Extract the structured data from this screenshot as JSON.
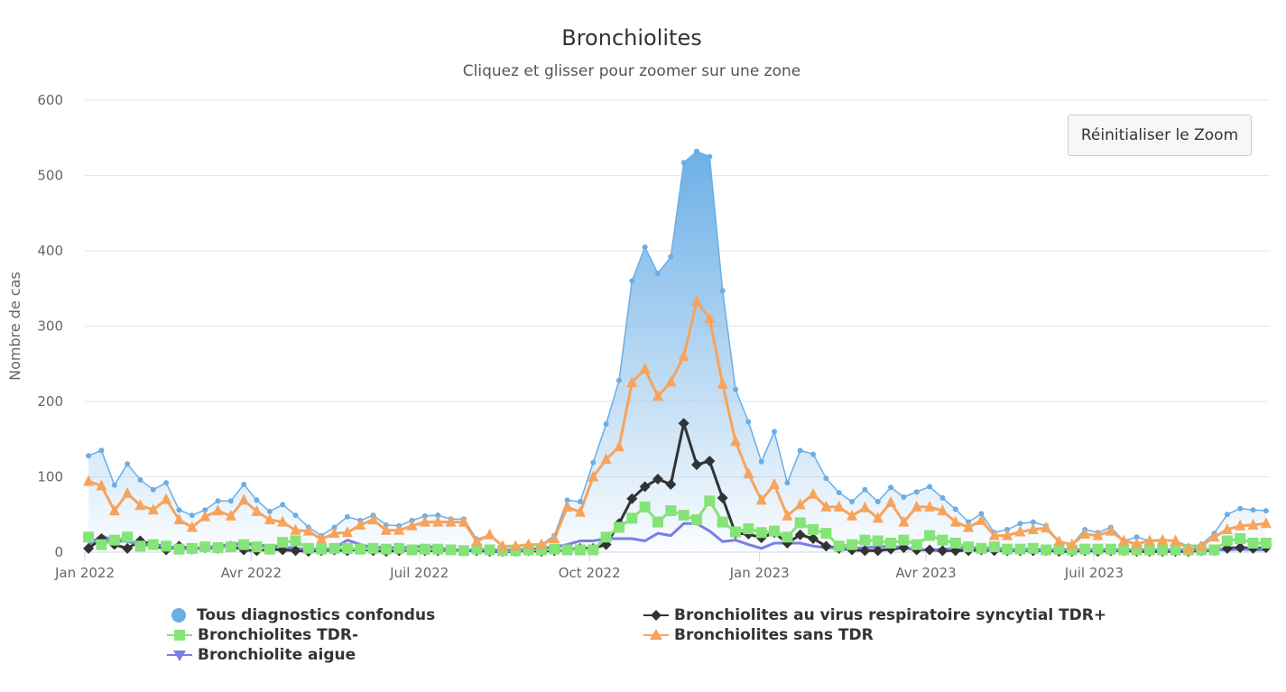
{
  "title": "Bronchiolites",
  "subtitle": "Cliquez et glisser pour zoomer sur une zone",
  "reset_zoom_label": "Réinitialiser le Zoom",
  "chart_data": {
    "type": "line",
    "title": "Bronchiolites",
    "subtitle": "Cliquez et glisser pour zoomer sur une zone",
    "xlabel": "",
    "ylabel": "Nombre de cas",
    "ylim": [
      0,
      600
    ],
    "yticks": [
      0,
      100,
      200,
      300,
      400,
      500,
      600
    ],
    "xlim": [
      "2022-01-01",
      "2023-10-04"
    ],
    "xticks": [
      {
        "date": "2022-01-01",
        "label": "Jan 2022"
      },
      {
        "date": "2022-04-01",
        "label": "Avr 2022"
      },
      {
        "date": "2022-07-01",
        "label": "Juil 2022"
      },
      {
        "date": "2022-10-01",
        "label": "Oct 2022"
      },
      {
        "date": "2023-01-01",
        "label": "Jan 2023"
      },
      {
        "date": "2023-04-01",
        "label": "Avr 2023"
      },
      {
        "date": "2023-07-01",
        "label": "Juil 2023"
      }
    ],
    "grid": true,
    "legend_position": "bottom",
    "x": [
      "2022-01-03",
      "2022-01-10",
      "2022-01-17",
      "2022-01-24",
      "2022-01-31",
      "2022-02-07",
      "2022-02-14",
      "2022-02-21",
      "2022-02-28",
      "2022-03-07",
      "2022-03-14",
      "2022-03-21",
      "2022-03-28",
      "2022-04-04",
      "2022-04-11",
      "2022-04-18",
      "2022-04-25",
      "2022-05-02",
      "2022-05-09",
      "2022-05-16",
      "2022-05-23",
      "2022-05-30",
      "2022-06-06",
      "2022-06-13",
      "2022-06-20",
      "2022-06-27",
      "2022-07-04",
      "2022-07-11",
      "2022-07-18",
      "2022-07-25",
      "2022-08-01",
      "2022-08-08",
      "2022-08-15",
      "2022-08-22",
      "2022-08-29",
      "2022-09-05",
      "2022-09-12",
      "2022-09-19",
      "2022-09-26",
      "2022-10-03",
      "2022-10-10",
      "2022-10-17",
      "2022-10-24",
      "2022-10-31",
      "2022-11-07",
      "2022-11-14",
      "2022-11-21",
      "2022-11-28",
      "2022-12-05",
      "2022-12-12",
      "2022-12-19",
      "2022-12-26",
      "2023-01-02",
      "2023-01-09",
      "2023-01-16",
      "2023-01-23",
      "2023-01-30",
      "2023-02-06",
      "2023-02-13",
      "2023-02-20",
      "2023-02-27",
      "2023-03-06",
      "2023-03-13",
      "2023-03-20",
      "2023-03-27",
      "2023-04-03",
      "2023-04-10",
      "2023-04-17",
      "2023-04-24",
      "2023-05-01",
      "2023-05-08",
      "2023-05-15",
      "2023-05-22",
      "2023-05-29",
      "2023-06-05",
      "2023-06-12",
      "2023-06-19",
      "2023-06-26",
      "2023-07-03",
      "2023-07-10",
      "2023-07-17",
      "2023-07-24",
      "2023-07-31",
      "2023-08-07",
      "2023-08-14",
      "2023-08-21",
      "2023-08-28",
      "2023-09-04",
      "2023-09-11",
      "2023-09-18",
      "2023-09-25",
      "2023-10-02"
    ],
    "series": [
      {
        "name": "Tous diagnostics confondus",
        "color": "#6aaee6",
        "marker": "circle",
        "area": true,
        "values": [
          128,
          135,
          89,
          117,
          96,
          83,
          92,
          56,
          49,
          56,
          68,
          68,
          90,
          69,
          54,
          63,
          49,
          33,
          22,
          33,
          47,
          42,
          49,
          36,
          35,
          42,
          48,
          49,
          44,
          44,
          17,
          23,
          8,
          8,
          10,
          10,
          22,
          69,
          67,
          119,
          170,
          228,
          360,
          405,
          370,
          392,
          517,
          532,
          525,
          347,
          216,
          173,
          120,
          160,
          92,
          135,
          130,
          98,
          79,
          67,
          83,
          67,
          86,
          73,
          80,
          87,
          72,
          57,
          40,
          51,
          26,
          30,
          38,
          40,
          35,
          14,
          10,
          30,
          26,
          33,
          15,
          20,
          15,
          16,
          15,
          8,
          10,
          25,
          50,
          58,
          56,
          55
        ]
      },
      {
        "name": "Bronchiolites au virus respiratoire syncytial TDR+",
        "color": "#333333",
        "marker": "diamond",
        "values": [
          5,
          18,
          10,
          5,
          15,
          10,
          3,
          8,
          4,
          6,
          5,
          8,
          3,
          2,
          4,
          3,
          2,
          1,
          2,
          3,
          2,
          4,
          2,
          1,
          2,
          3,
          2,
          2,
          3,
          2,
          2,
          1,
          1,
          1,
          2,
          1,
          2,
          3,
          5,
          5,
          10,
          38,
          71,
          87,
          97,
          90,
          171,
          116,
          121,
          72,
          25,
          24,
          19,
          26,
          12,
          23,
          18,
          8,
          5,
          3,
          2,
          2,
          4,
          6,
          3,
          3,
          2,
          2,
          2,
          3,
          2,
          2,
          2,
          2,
          2,
          1,
          1,
          2,
          1,
          2,
          2,
          1,
          1,
          1,
          1,
          1,
          2,
          2,
          5,
          6,
          5,
          6
        ]
      },
      {
        "name": "Bronchiolites TDR-",
        "color": "#84e477",
        "marker": "square",
        "values": [
          20,
          10,
          16,
          20,
          8,
          10,
          8,
          4,
          5,
          7,
          6,
          7,
          10,
          7,
          4,
          13,
          15,
          5,
          4,
          5,
          5,
          4,
          5,
          4,
          5,
          3,
          4,
          4,
          3,
          2,
          4,
          3,
          2,
          2,
          3,
          3,
          4,
          3,
          3,
          3,
          20,
          33,
          45,
          60,
          40,
          55,
          49,
          43,
          68,
          40,
          27,
          31,
          26,
          28,
          20,
          39,
          30,
          25,
          8,
          10,
          16,
          15,
          12,
          16,
          10,
          22,
          16,
          12,
          7,
          5,
          7,
          4,
          4,
          5,
          3,
          4,
          3,
          4,
          4,
          4,
          3,
          3,
          3,
          3,
          3,
          3,
          3,
          3,
          15,
          18,
          12,
          12
        ]
      },
      {
        "name": "Bronchiolites sans TDR",
        "color": "#f7a35c",
        "marker": "triangle",
        "values": [
          94,
          88,
          55,
          78,
          62,
          56,
          70,
          43,
          33,
          47,
          55,
          48,
          69,
          54,
          43,
          40,
          29,
          28,
          17,
          25,
          26,
          36,
          43,
          29,
          29,
          35,
          40,
          40,
          40,
          40,
          14,
          23,
          8,
          8,
          10,
          10,
          18,
          60,
          53,
          100,
          123,
          140,
          225,
          243,
          207,
          226,
          260,
          333,
          310,
          223,
          147,
          104,
          69,
          90,
          48,
          63,
          77,
          60,
          60,
          48,
          59,
          45,
          66,
          40,
          60,
          60,
          55,
          40,
          33,
          42,
          22,
          22,
          27,
          30,
          32,
          14,
          10,
          24,
          22,
          28,
          15,
          11,
          15,
          16,
          15,
          5,
          8,
          20,
          30,
          35,
          36,
          38
        ]
      },
      {
        "name": "Bronchiolite aigue",
        "color": "#7a7ee6",
        "marker": "triangle-down",
        "show_markers": false,
        "values": [
          10,
          22,
          15,
          14,
          10,
          10,
          8,
          5,
          4,
          6,
          8,
          10,
          12,
          10,
          8,
          7,
          5,
          4,
          3,
          5,
          16,
          10,
          6,
          7,
          5,
          7,
          8,
          6,
          3,
          3,
          3,
          3,
          3,
          3,
          4,
          5,
          7,
          10,
          15,
          15,
          18,
          18,
          18,
          15,
          25,
          22,
          38,
          38,
          28,
          14,
          16,
          10,
          5,
          12,
          12,
          12,
          8,
          6,
          5,
          5,
          6,
          7,
          8,
          6,
          4,
          3,
          4,
          5,
          6,
          5,
          3,
          3,
          3,
          3,
          3,
          3,
          3,
          3,
          3,
          3,
          3,
          3,
          3,
          3,
          3,
          3,
          3,
          3,
          3,
          4,
          3,
          3
        ]
      }
    ]
  }
}
